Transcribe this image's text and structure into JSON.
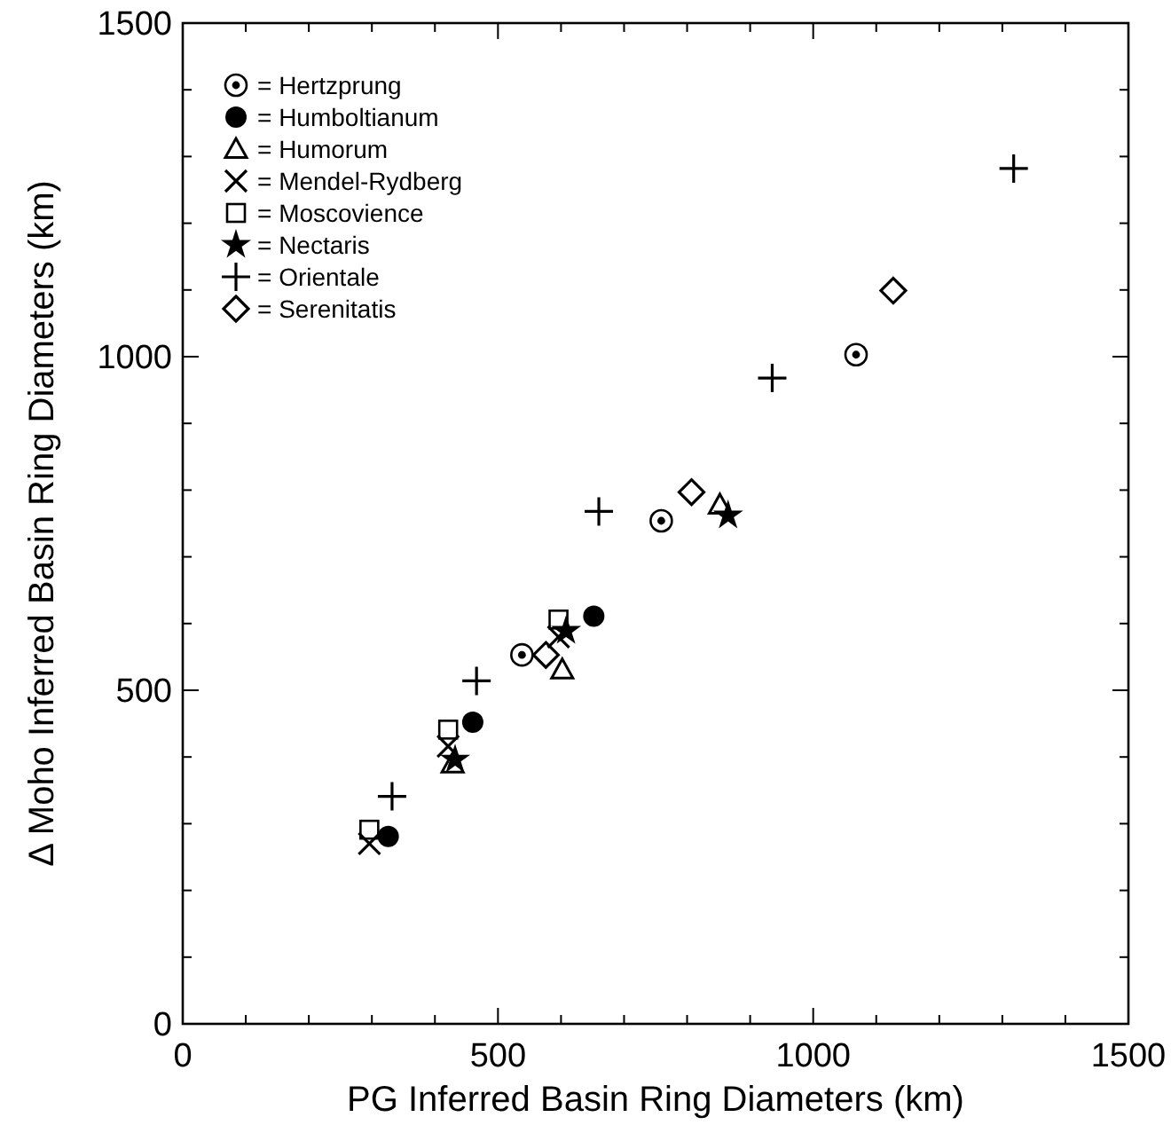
{
  "chart_data": {
    "type": "scatter",
    "xlabel": "PG Inferred Basin Ring Diameters (km)",
    "ylabel": "Δ Moho Inferred Basin Ring Diameters (km)",
    "xlim": [
      0,
      1500
    ],
    "ylim": [
      0,
      1500
    ],
    "xticks": [
      0,
      {
        "value": 100,
        "label": null
      },
      {
        "value": 200,
        "label": null
      },
      {
        "value": 300,
        "label": null
      },
      {
        "value": 400,
        "label": null
      },
      500,
      {
        "value": 600,
        "label": null
      },
      {
        "value": 700,
        "label": null
      },
      {
        "value": 800,
        "label": null
      },
      {
        "value": 900,
        "label": null
      },
      1000,
      {
        "value": 1100,
        "label": null
      },
      {
        "value": 1200,
        "label": null
      },
      {
        "value": 1300,
        "label": null
      },
      {
        "value": 1400,
        "label": null
      },
      1500
    ],
    "yticks": [
      0,
      {
        "value": 100,
        "label": null
      },
      {
        "value": 200,
        "label": null
      },
      {
        "value": 300,
        "label": null
      },
      {
        "value": 400,
        "label": null
      },
      500,
      {
        "value": 600,
        "label": null
      },
      {
        "value": 700,
        "label": null
      },
      {
        "value": 800,
        "label": null
      },
      {
        "value": 900,
        "label": null
      },
      1000,
      {
        "value": 1100,
        "label": null
      },
      {
        "value": 1200,
        "label": null
      },
      {
        "value": 1300,
        "label": null
      },
      {
        "value": 1400,
        "label": null
      },
      1500
    ],
    "grid": false,
    "legend": "top left",
    "series": [
      {
        "name": "= Hertzprung",
        "color": "#000000",
        "marker": "circle-dot",
        "x": [
          538,
          759,
          1068
        ],
        "values": [
          553,
          754,
          1003
        ]
      },
      {
        "name": "= Humboltianum",
        "color": "#000000",
        "marker": "filled-circle",
        "x": [
          326,
          460,
          652
        ],
        "values": [
          281,
          452,
          611
        ]
      },
      {
        "name": "= Humorum",
        "color": "#000000",
        "marker": "triangle",
        "x": [
          428,
          602,
          852
        ],
        "values": [
          390,
          531,
          778
        ]
      },
      {
        "name": "= Mendel-Rydberg",
        "color": "#000000",
        "marker": "x",
        "x": [
          296,
          421,
          596
        ],
        "values": [
          270,
          416,
          580
        ]
      },
      {
        "name": "= Moscovience",
        "color": "#000000",
        "marker": "square",
        "x": [
          296,
          421,
          596
        ],
        "values": [
          291,
          441,
          606
        ]
      },
      {
        "name": "= Nectaris",
        "color": "#000000",
        "marker": "star",
        "x": [
          432,
          608,
          865
        ],
        "values": [
          396,
          589,
          762
        ]
      },
      {
        "name": "= Orientale",
        "color": "#000000",
        "marker": "cross",
        "x": [
          332,
          466,
          660,
          935,
          1318
        ],
        "values": [
          341,
          514,
          768,
          968,
          1282
        ]
      },
      {
        "name": "= Serenitatis",
        "color": "#000000",
        "marker": "diamond",
        "x": [
          576,
          807,
          1127
        ],
        "values": [
          553,
          797,
          1099
        ]
      }
    ]
  }
}
